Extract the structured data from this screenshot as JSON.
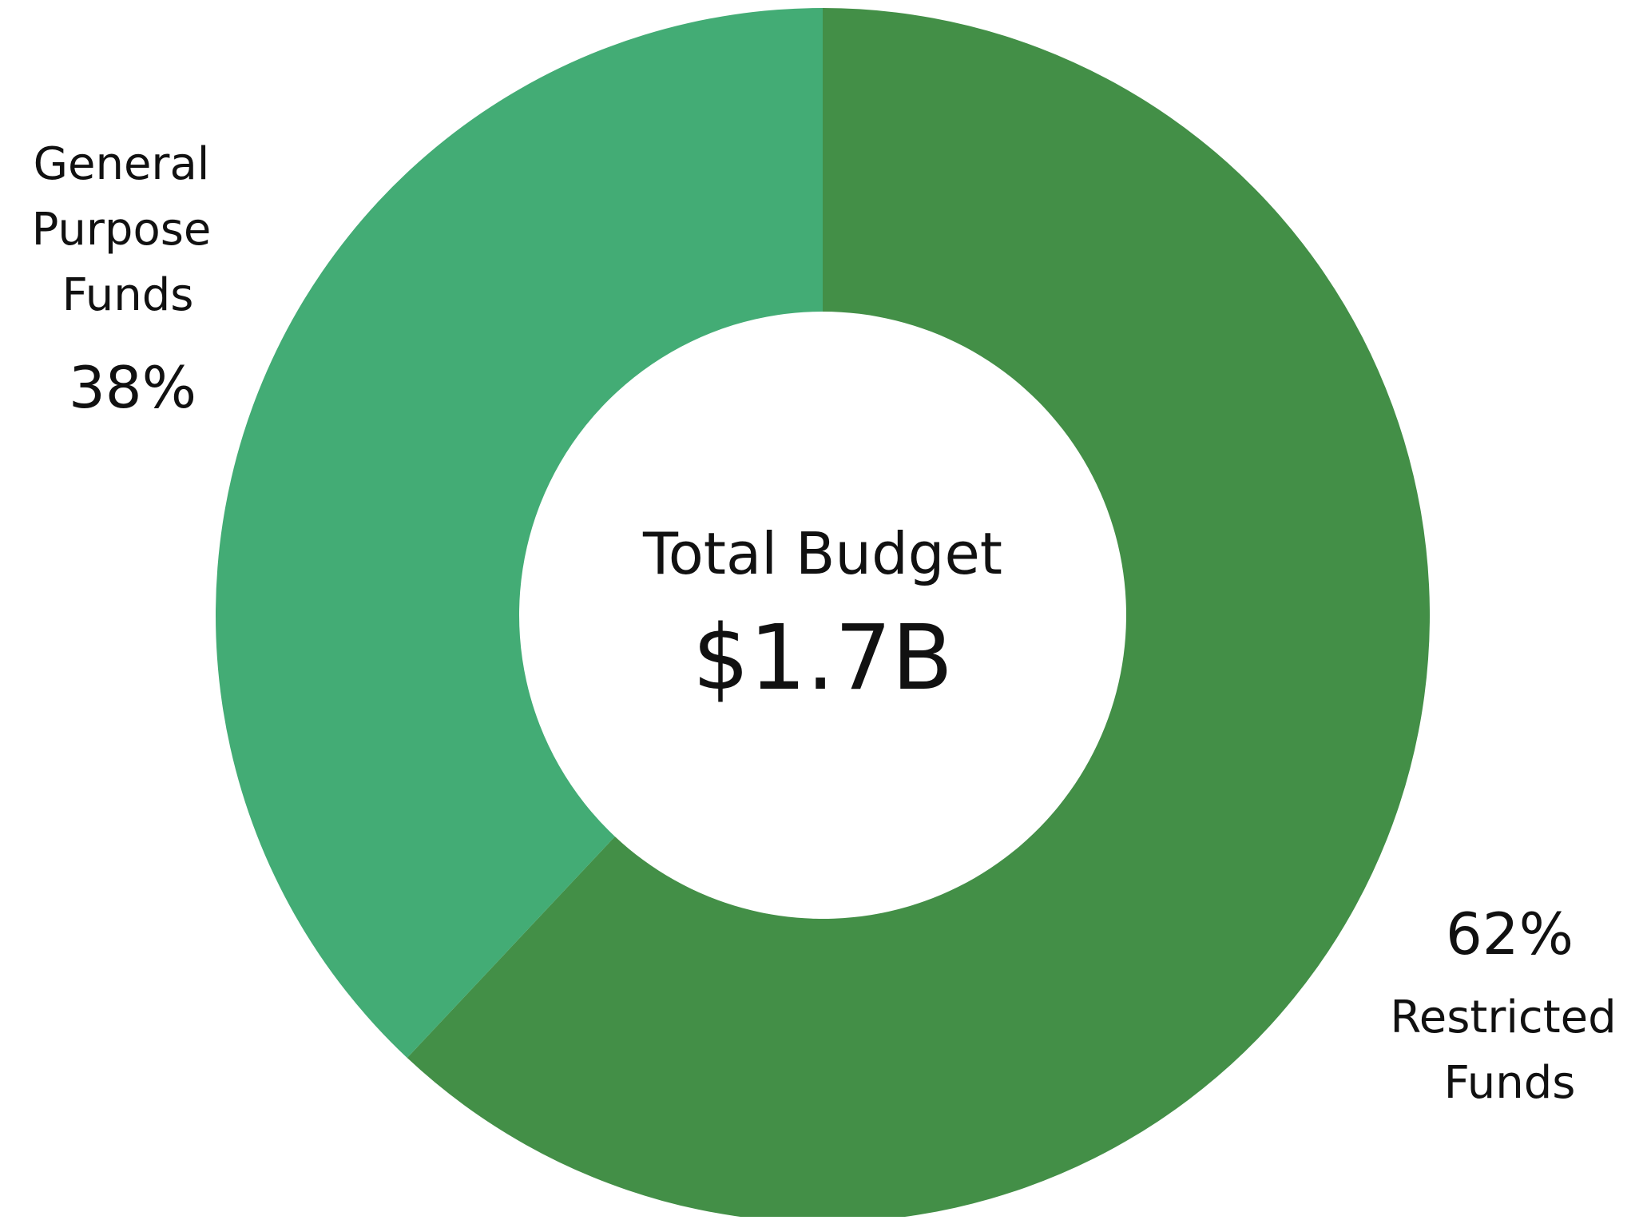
{
  "chart_data": {
    "type": "pie",
    "variant": "donut",
    "center_label": "Total Budget",
    "center_value": "$1.7B",
    "slices": [
      {
        "name_lines": [
          "Restricted",
          "Funds"
        ],
        "value": 62,
        "value_label": "62%",
        "color": "#438f47"
      },
      {
        "name_lines": [
          "General",
          "Purpose",
          "Funds"
        ],
        "value": 38,
        "value_label": "38%",
        "color": "#43ac75"
      }
    ]
  }
}
